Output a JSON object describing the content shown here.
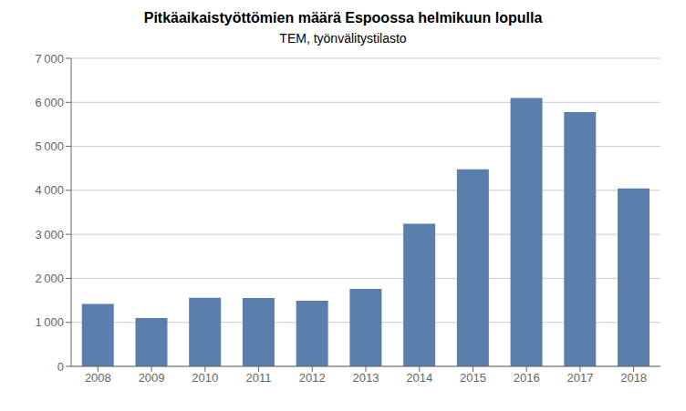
{
  "chart_data": {
    "type": "bar",
    "title": "Pitkäaikaistyöttömien määrä Espoossa helmikuun lopulla",
    "subtitle": "TEM, työnvälitystilasto",
    "categories": [
      "2008",
      "2009",
      "2010",
      "2011",
      "2012",
      "2013",
      "2014",
      "2015",
      "2016",
      "2017",
      "2018"
    ],
    "values": [
      1420,
      1100,
      1560,
      1555,
      1490,
      1760,
      3240,
      4480,
      6100,
      5780,
      4043
    ],
    "color": "#5b7fad",
    "ylim": [
      0,
      7000
    ],
    "yticks": [
      0,
      {
        "value": 1000,
        "label": "1 000"
      },
      {
        "value": 2000,
        "label": "2 000"
      },
      {
        "value": 3000,
        "label": "3 000"
      },
      {
        "value": 4000,
        "label": "4 000"
      },
      {
        "value": 5000,
        "label": "5 000"
      },
      {
        "value": 6000,
        "label": "6 000"
      },
      {
        "value": 7000,
        "label": "7 000"
      }
    ],
    "grid": true
  }
}
